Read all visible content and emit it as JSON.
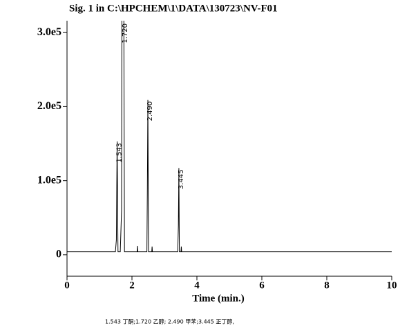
{
  "chart_data": {
    "type": "line",
    "title": "Sig. 1 in C:\\HPCHEM\\1\\DATA\\130723\\NV-F01",
    "x_label": "Time (min.)",
    "footnote": "1.543 丁酮;1.720 乙醇; 2.490 甲苯;3.445 正丁醇,",
    "xlim": [
      0,
      10
    ],
    "ylim": [
      -29000,
      316000
    ],
    "xticks": [
      0,
      2,
      4,
      6,
      8,
      10
    ],
    "yticks": [
      0,
      {
        "value": 100000,
        "label": "1.0e5"
      },
      {
        "value": 200000,
        "label": "2.0e5"
      },
      {
        "value": 300000,
        "label": "3.0e5"
      }
    ],
    "series": [
      {
        "color": "#000000",
        "x": [
          0,
          1.49,
          1.52,
          1.543,
          1.57,
          1.64,
          1.68,
          1.69,
          1.75,
          1.77,
          1.8,
          2.16,
          2.17,
          2.18,
          2.46,
          2.475,
          2.49,
          2.51,
          2.53,
          2.61,
          2.62,
          2.63,
          3.41,
          3.43,
          3.445,
          3.46,
          3.48,
          3.51,
          3.52,
          3.53,
          10
        ],
        "values": [
          4000,
          4000,
          20000,
          153000,
          4000,
          4000,
          60000,
          320000,
          320000,
          4000,
          4000,
          4000,
          12000,
          4000,
          4000,
          90000,
          209000,
          4000,
          4000,
          4000,
          11000,
          4000,
          4000,
          40000,
          117000,
          4000,
          4000,
          4000,
          11000,
          4000,
          4000
        ]
      }
    ],
    "peaks": [
      {
        "time": 1.543,
        "label": "1.543"
      },
      {
        "time": 1.72,
        "label": "1.720"
      },
      {
        "time": 2.49,
        "label": "2.490"
      },
      {
        "time": 3.445,
        "label": "3.445"
      }
    ]
  }
}
